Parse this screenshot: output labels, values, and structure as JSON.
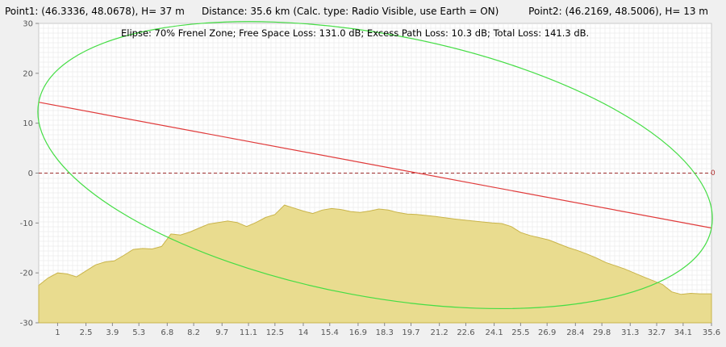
{
  "header": {
    "point1": "Point1: (46.3336, 48.0678), H= 37 m",
    "distance": "Distance: 35.6 km (Calc. type: Radio Visible, use Earth = ON)",
    "point2": "Point2: (46.2169, 48.5006), H= 13 m"
  },
  "subtitle": "Elipse: 70% Frenel Zone;  Free Space Loss: 131.0 dB;  Excess Path Loss: 10.3 dB;   Total Loss: 141.3 dB.",
  "zero_marker": "0",
  "colors": {
    "terrain_fill": "#e9dc8f",
    "terrain_stroke": "#c9b44a",
    "los_line": "#e03a3a",
    "fresnel": "#44dd44",
    "zero_line": "#a03030",
    "grid": "#e6e6e6"
  },
  "chart_data": {
    "type": "area",
    "xlim": [
      0,
      35.6
    ],
    "ylim": [
      -30,
      30
    ],
    "yticks": [
      30,
      20,
      10,
      0,
      -10,
      -20,
      -30
    ],
    "xtick_labels": [
      "1",
      "2.5",
      "3.9",
      "5.3",
      "6.8",
      "8.2",
      "9.7",
      "11.1",
      "12.5",
      "14",
      "15.4",
      "16.9",
      "18.3",
      "19.7",
      "21.2",
      "22.6",
      "24.1",
      "25.5",
      "26.9",
      "28.4",
      "29.8",
      "31.3",
      "32.7",
      "34.1",
      "35.6"
    ],
    "xtick_values": [
      1,
      2.5,
      3.9,
      5.3,
      6.8,
      8.2,
      9.7,
      11.1,
      12.5,
      14,
      15.4,
      16.9,
      18.3,
      19.7,
      21.2,
      22.6,
      24.1,
      25.5,
      26.9,
      28.4,
      29.8,
      31.3,
      32.7,
      34.1,
      35.6
    ],
    "terrain": {
      "x": [
        0,
        0.5,
        1.0,
        1.5,
        2.0,
        2.5,
        3.0,
        3.5,
        4.0,
        4.5,
        5.0,
        5.5,
        6.0,
        6.5,
        7.0,
        7.5,
        8.0,
        8.5,
        9.0,
        9.5,
        10.0,
        10.5,
        11.0,
        11.5,
        12.0,
        12.5,
        13.0,
        13.5,
        14.0,
        14.5,
        15.0,
        15.5,
        16.0,
        16.5,
        17.0,
        17.5,
        18.0,
        18.5,
        19.0,
        19.5,
        20.0,
        21.0,
        22.0,
        23.0,
        24.0,
        24.5,
        25.0,
        25.5,
        26.0,
        27.0,
        28.0,
        28.5,
        29.0,
        29.5,
        30.0,
        31.0,
        32.0,
        33.0,
        33.5,
        34.0,
        34.5,
        35.0,
        35.6
      ],
      "y": [
        -22.5,
        -21.0,
        -20.0,
        -20.2,
        -20.8,
        -19.6,
        -18.4,
        -17.8,
        -17.6,
        -16.5,
        -15.3,
        -15.1,
        -15.2,
        -14.7,
        -12.2,
        -12.4,
        -11.8,
        -11.0,
        -10.2,
        -9.9,
        -9.6,
        -9.9,
        -10.7,
        -9.9,
        -8.9,
        -8.3,
        -6.4,
        -7.0,
        -7.6,
        -8.1,
        -7.4,
        -7.1,
        -7.3,
        -7.7,
        -7.9,
        -7.6,
        -7.2,
        -7.4,
        -7.9,
        -8.2,
        -8.3,
        -8.7,
        -9.2,
        -9.6,
        -10.0,
        -10.1,
        -10.7,
        -11.9,
        -12.5,
        -13.4,
        -14.9,
        -15.5,
        -16.2,
        -17.0,
        -17.9,
        -19.2,
        -20.8,
        -22.3,
        -23.8,
        -24.3,
        -24.1,
        -24.2,
        -24.2
      ]
    },
    "line_of_sight": {
      "x": [
        0,
        35.6
      ],
      "y": [
        14.2,
        -11.0
      ]
    },
    "fresnel_zone": {
      "center": [
        17.8,
        1.6
      ],
      "semi_axis_along": 18.2,
      "semi_axis_across_m": 26.3,
      "note_ref": "subtitle"
    },
    "zero_line": 0
  }
}
